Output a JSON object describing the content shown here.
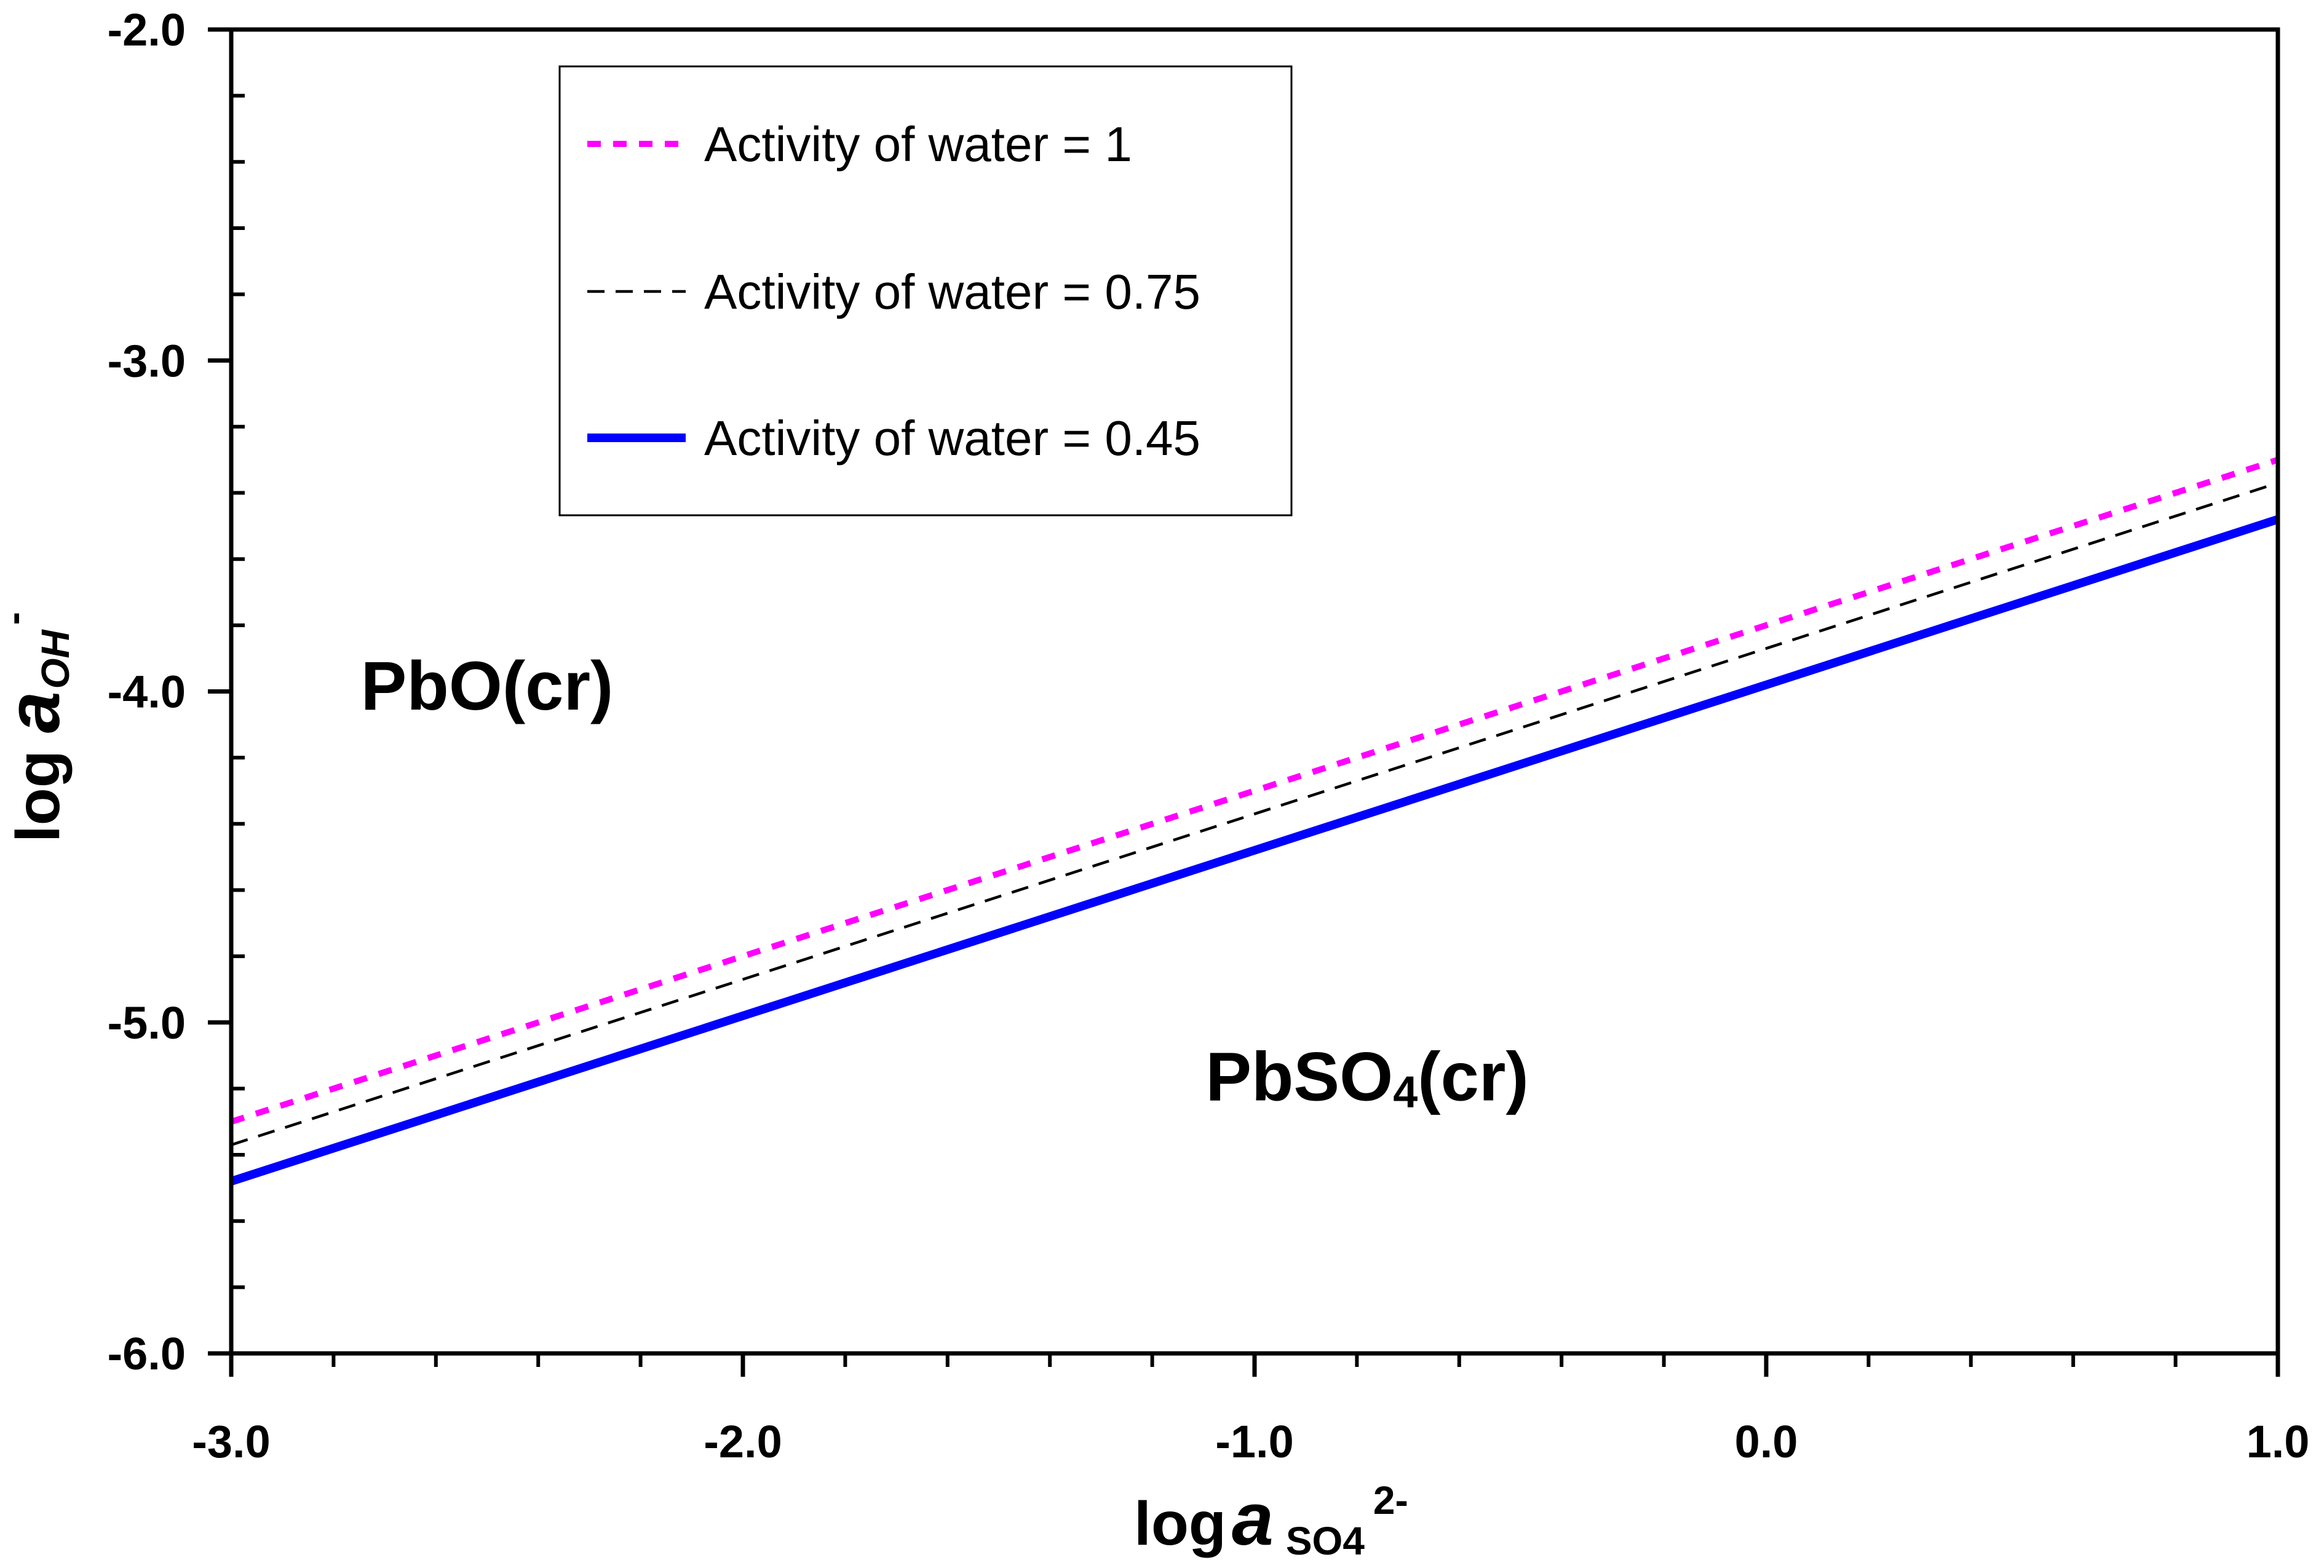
{
  "chart_data": {
    "type": "line",
    "xlim": [
      -3.0,
      1.0
    ],
    "ylim": [
      -6.0,
      -2.0
    ],
    "x_ticks": [
      "-3.0",
      "-2.0",
      "-1.0",
      "0.0",
      "1.0"
    ],
    "y_ticks": [
      "-2.0",
      "-3.0",
      "-4.0",
      "-5.0",
      "-6.0"
    ],
    "x_tick_values": [
      -3.0,
      -2.0,
      -1.0,
      0.0,
      1.0
    ],
    "y_tick_values": [
      -2.0,
      -3.0,
      -4.0,
      -5.0,
      -6.0
    ],
    "x_minor_step": 0.2,
    "y_minor_step": 0.2,
    "xlabel": {
      "prefix": "log ",
      "italic": "a",
      "sub": "SO4",
      "sup": "2-"
    },
    "ylabel": {
      "prefix": "log ",
      "italic": "a",
      "sub": "OH",
      "sup": "-"
    },
    "grid": false,
    "legend_position": "top-left",
    "series": [
      {
        "name": "Activity of water = 1",
        "color": "#ff00ff",
        "style": "dotted",
        "x": [
          -3.0,
          1.0
        ],
        "y": [
          -5.3,
          -3.3
        ]
      },
      {
        "name": "Activity of water = 0.75",
        "color": "#000000",
        "style": "dashed",
        "x": [
          -3.0,
          1.0
        ],
        "y": [
          -5.37,
          -3.37
        ]
      },
      {
        "name": "Activity of water = 0.45",
        "color": "#0000ff",
        "style": "solid",
        "x": [
          -3.0,
          1.0
        ],
        "y": [
          -5.48,
          -3.48
        ]
      }
    ],
    "annotations": [
      {
        "text": "PbO(cr)",
        "x": -2.5,
        "y": -4.0
      },
      {
        "main": "PbSO",
        "sub": "4",
        "tail": "(cr)",
        "x": -0.78,
        "y": -5.18
      }
    ]
  }
}
